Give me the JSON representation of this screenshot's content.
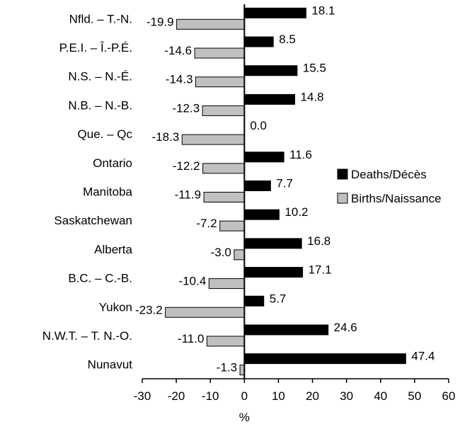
{
  "chart_data": {
    "type": "bar",
    "orientation": "horizontal",
    "categories": [
      "Nfld. – T.-N.",
      "P.E.I. – Î.-P.É.",
      "N.S. – N.-É.",
      "N.B. – N.-B.",
      "Que. – Qc",
      "Ontario",
      "Manitoba",
      "Saskatchewan",
      "Alberta",
      "B.C. – C.-B.",
      "Yukon",
      "N.W.T. – T. N.-O.",
      "Nunavut"
    ],
    "series": [
      {
        "name": "Deaths/Décès",
        "color": "#000000",
        "values": [
          18.1,
          8.5,
          15.5,
          14.8,
          0.0,
          11.6,
          7.7,
          10.2,
          16.8,
          17.1,
          5.7,
          24.6,
          47.4
        ],
        "labels": [
          "18.1",
          "8.5",
          "15.5",
          "14.8",
          "0.0",
          "11.6",
          "7.7",
          "10.2",
          "16.8",
          "17.1",
          "5.7",
          "24.6",
          "47.4"
        ]
      },
      {
        "name": "Births/Naissance",
        "color": "#c0c0c0",
        "values": [
          -19.9,
          -14.6,
          -14.3,
          -12.3,
          -18.3,
          -12.2,
          -11.9,
          -7.2,
          -3.0,
          -10.4,
          -23.2,
          -11.0,
          -1.3
        ],
        "labels": [
          "-19.9",
          "-14.6",
          "-14.3",
          "-12.3",
          "-18.3",
          "-12.2",
          "-11.9",
          "-7.2",
          "-3.0",
          "-10.4",
          "-23.2",
          "-11.0",
          "-1.3"
        ]
      }
    ],
    "xlabel": "%",
    "xlim": [
      -30,
      60
    ],
    "xticks": [
      "-30",
      "-20",
      "-10",
      "0",
      "10",
      "20",
      "30",
      "40",
      "50",
      "60"
    ],
    "legend_position": "right",
    "grid": false
  }
}
